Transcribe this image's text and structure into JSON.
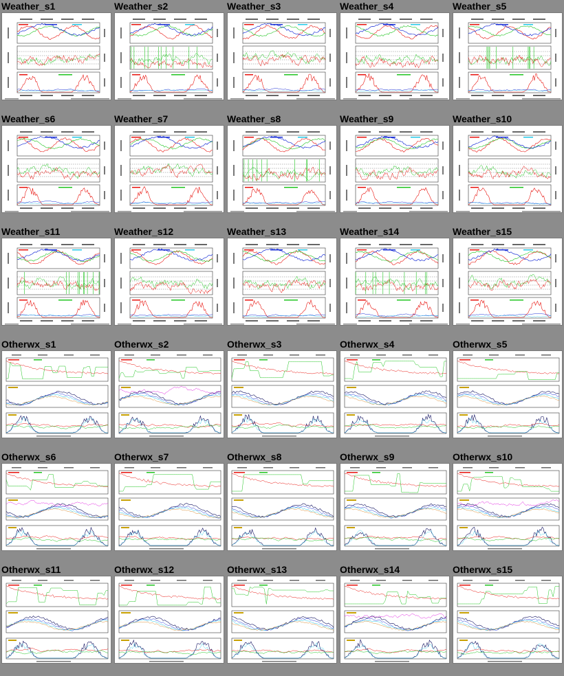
{
  "page": {
    "background_color": "#8c8c8c"
  },
  "thumbnails": [
    {
      "label": "Weather_s1",
      "kind": "weather",
      "seed": 1
    },
    {
      "label": "Weather_s2",
      "kind": "weather",
      "seed": 2
    },
    {
      "label": "Weather_s3",
      "kind": "weather",
      "seed": 3
    },
    {
      "label": "Weather_s4",
      "kind": "weather",
      "seed": 4
    },
    {
      "label": "Weather_s5",
      "kind": "weather",
      "seed": 5
    },
    {
      "label": "Weather_s6",
      "kind": "weather",
      "seed": 6
    },
    {
      "label": "Weather_s7",
      "kind": "weather",
      "seed": 7
    },
    {
      "label": "Weather_s8",
      "kind": "weather",
      "seed": 8
    },
    {
      "label": "Weather_s9",
      "kind": "weather",
      "seed": 9
    },
    {
      "label": "Weather_s10",
      "kind": "weather",
      "seed": 10
    },
    {
      "label": "Weather_s11",
      "kind": "weather",
      "seed": 11
    },
    {
      "label": "Weather_s12",
      "kind": "weather",
      "seed": 12
    },
    {
      "label": "Weather_s13",
      "kind": "weather",
      "seed": 13
    },
    {
      "label": "Weather_s14",
      "kind": "weather",
      "seed": 14
    },
    {
      "label": "Weather_s15",
      "kind": "weather",
      "seed": 15
    },
    {
      "label": "Otherwx_s1",
      "kind": "otherwx",
      "seed": 16
    },
    {
      "label": "Otherwx_s2",
      "kind": "otherwx",
      "seed": 17
    },
    {
      "label": "Otherwx_s3",
      "kind": "otherwx",
      "seed": 18
    },
    {
      "label": "Otherwx_s4",
      "kind": "otherwx",
      "seed": 19
    },
    {
      "label": "Otherwx_s5",
      "kind": "otherwx",
      "seed": 20
    },
    {
      "label": "Otherwx_s6",
      "kind": "otherwx",
      "seed": 21
    },
    {
      "label": "Otherwx_s7",
      "kind": "otherwx",
      "seed": 22
    },
    {
      "label": "Otherwx_s8",
      "kind": "otherwx",
      "seed": 23
    },
    {
      "label": "Otherwx_s9",
      "kind": "otherwx",
      "seed": 24
    },
    {
      "label": "Otherwx_s10",
      "kind": "otherwx",
      "seed": 25
    },
    {
      "label": "Otherwx_s11",
      "kind": "otherwx",
      "seed": 26
    },
    {
      "label": "Otherwx_s12",
      "kind": "otherwx",
      "seed": 27
    },
    {
      "label": "Otherwx_s13",
      "kind": "otherwx",
      "seed": 28
    },
    {
      "label": "Otherwx_s14",
      "kind": "otherwx",
      "seed": 29
    },
    {
      "label": "Otherwx_s15",
      "kind": "otherwx",
      "seed": 30
    }
  ],
  "plot_colors": {
    "red": "#e8120c",
    "green": "#1fc41f",
    "blue": "#1a2fd6",
    "cyan": "#22c8e8",
    "magenta": "#e020e0",
    "navy": "#101060",
    "orange": "#d07000",
    "frame": "#333333"
  }
}
